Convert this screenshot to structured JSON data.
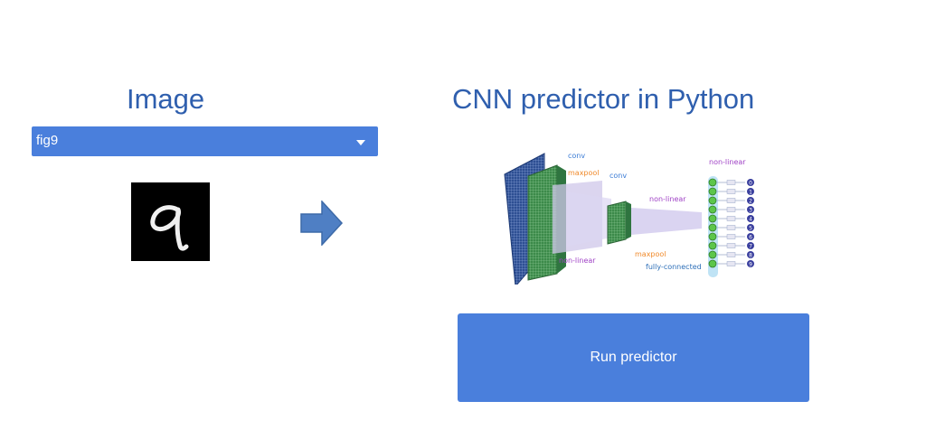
{
  "left_panel": {
    "title": "Image",
    "image_select": {
      "selected": "fig9"
    },
    "digit_icon": "handwritten-digit-9-image"
  },
  "arrow_icon": "right-arrow-icon",
  "right_panel": {
    "title": "CNN predictor in Python",
    "diagram": {
      "labels": {
        "conv1": "conv",
        "maxpool1": "maxpool",
        "conv2": "conv",
        "nonlinear_mid": "non-linear",
        "nonlinear_bottom": "non-linear",
        "maxpool2": "maxpool",
        "fully_connected": "fully-connected",
        "nonlinear_top": "non-linear"
      },
      "outputs": [
        "0",
        "1",
        "2",
        "3",
        "4",
        "5",
        "6",
        "7",
        "8",
        "9"
      ]
    },
    "run_button": {
      "label": "Run predictor"
    }
  },
  "colors": {
    "accent": "#4a7fdc",
    "title": "#2f5fae"
  }
}
